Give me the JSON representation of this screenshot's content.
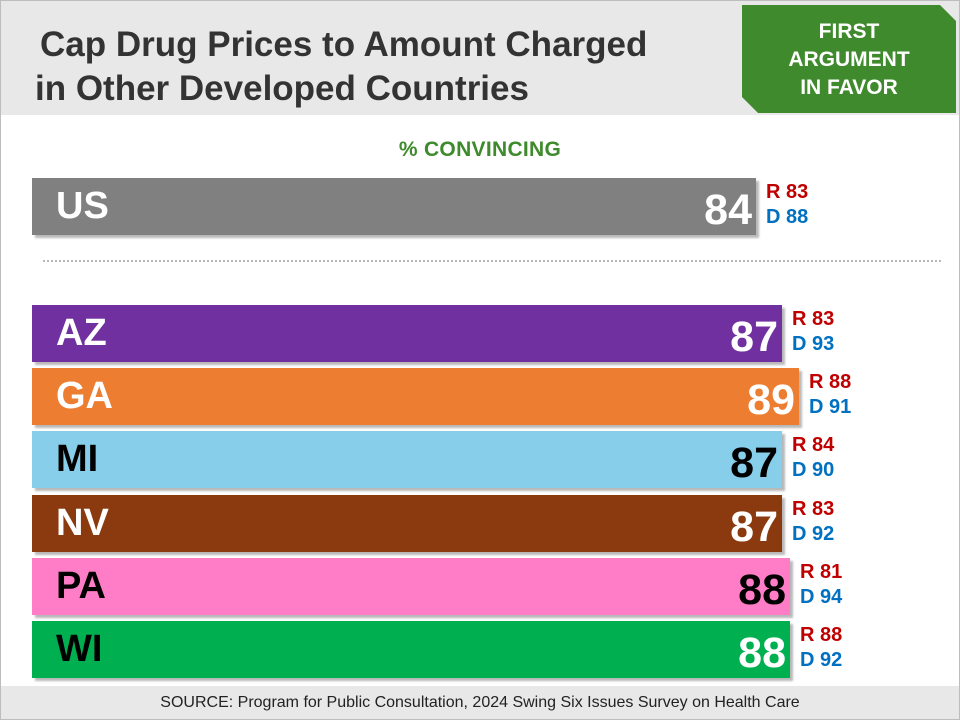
{
  "title_lines": [
    "Cap Drug Prices to Amount Charged",
    "in Other Developed Countries"
  ],
  "badge_lines": [
    "FIRST",
    "ARGUMENT",
    "IN FAVOR"
  ],
  "subtitle": "% CONVINCING",
  "source": "SOURCE: Program for Public Consultation, 2024 Swing Six Issues Survey on Health Care",
  "colors": {
    "badge": "#3f8a2c",
    "subtitle": "#3f8a2c",
    "republican": "#c00000",
    "democrat": "#0070c0",
    "header_bg": "#e8e8e8"
  },
  "chart_data": {
    "type": "bar",
    "orientation": "horizontal",
    "xlim": [
      0,
      100
    ],
    "categories": [
      "US",
      "AZ",
      "GA",
      "MI",
      "NV",
      "PA",
      "WI"
    ],
    "values": [
      84,
      87,
      89,
      87,
      87,
      88,
      88
    ],
    "republican": [
      "R 83",
      "R 83",
      "R 88",
      "R 84",
      "R 83",
      "R 81",
      "R 88"
    ],
    "democrat": [
      "D 88",
      "D 93",
      "D 91",
      "D 90",
      "D 92",
      "D 94",
      "D 92"
    ],
    "bar_colors": [
      "#808080",
      "#7030a0",
      "#ed7d31",
      "#87ceeb",
      "#8b3a0f",
      "#ff7dc6",
      "#00b050"
    ],
    "label_colors": [
      "#ffffff",
      "#ffffff",
      "#ffffff",
      "#000000",
      "#ffffff",
      "#000000",
      "#000000"
    ],
    "value_colors": [
      "#ffffff",
      "#ffffff",
      "#ffffff",
      "#000000",
      "#ffffff",
      "#000000",
      "#ffffff"
    ]
  }
}
